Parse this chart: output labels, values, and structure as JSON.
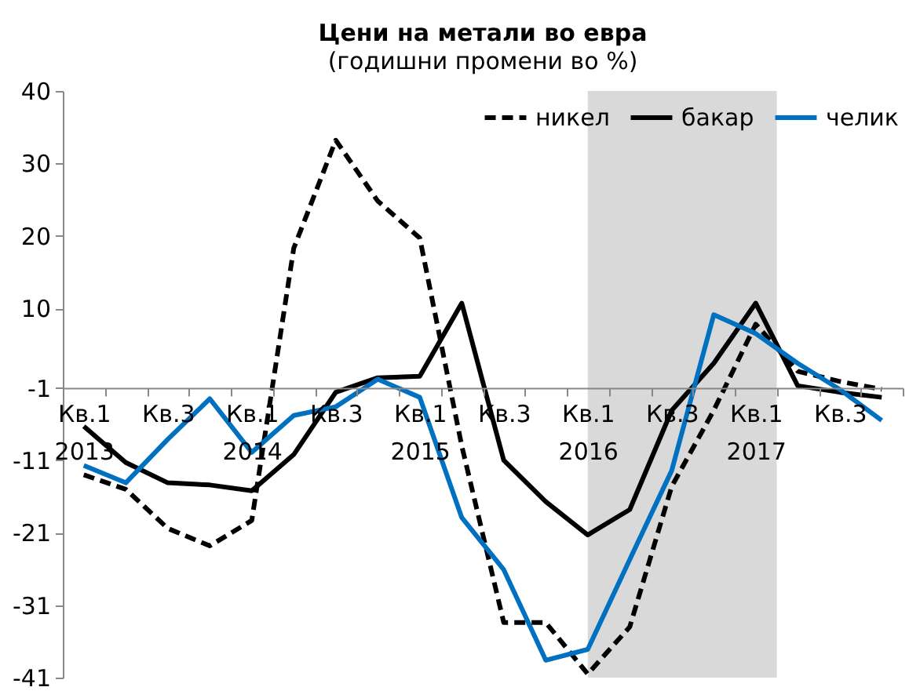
{
  "chart_data": {
    "type": "line",
    "title": "Цени на метали во евра",
    "subtitle": "(годишни промени во %)",
    "categories": [
      "Кв.1\n2013",
      null,
      "Кв.3",
      null,
      "Кв.1\n2014",
      null,
      "Кв.3",
      null,
      "Кв.1\n2015",
      null,
      "Кв.3",
      null,
      "Кв.1\n2016",
      null,
      "Кв.3",
      null,
      "Кв.1\n2017",
      null,
      "Кв.3",
      null
    ],
    "series": [
      {
        "name": "никел",
        "color": "#000000",
        "line_style": "dashed",
        "values": [
          -13,
          -15,
          -20.4,
          -22.8,
          -19.3,
          18.3,
          33.2,
          24.8,
          19.7,
          -9,
          -33.4,
          -33.4,
          -40.5,
          -34,
          -14.6,
          -4.1,
          7.8,
          1.3,
          -0.1,
          -1.2
        ]
      },
      {
        "name": "бакар",
        "color": "#000000",
        "line_style": "solid",
        "values": [
          -6.3,
          -11.3,
          -14.1,
          -14.4,
          -15.2,
          -10.2,
          -1.6,
          0.4,
          0.6,
          10.7,
          -11,
          -16.7,
          -21.3,
          -17.8,
          -4.1,
          2.4,
          10.7,
          -0.7,
          -1.6,
          -2.3
        ]
      },
      {
        "name": "челик",
        "color": "#0070c0",
        "line_style": "solid",
        "values": [
          -11.7,
          -14.1,
          -8.1,
          -2.5,
          -9.9,
          -4.8,
          -3.6,
          0.2,
          -2.3,
          -18.9,
          -26.1,
          -38.6,
          -37.1,
          -24.7,
          -12.4,
          9.1,
          6.5,
          2.4,
          -1.2,
          -5.5
        ]
      }
    ],
    "ylim": [
      -41,
      40
    ],
    "yticks": [
      40,
      30,
      20,
      10,
      -1,
      -11,
      -21,
      -31,
      -41
    ],
    "bands": [
      {
        "axis": "x",
        "from": "Кв.1\n2016",
        "to": "Кв.1\n2017",
        "color": "#d9d9d9"
      }
    ],
    "legend": "top right",
    "grid": false
  }
}
